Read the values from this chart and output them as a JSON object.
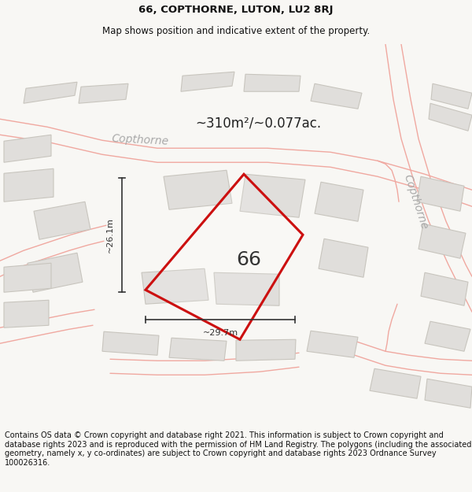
{
  "title": "66, COPTHORNE, LUTON, LU2 8RJ",
  "subtitle": "Map shows position and indicative extent of the property.",
  "area_text": "~310m²/~0.077ac.",
  "width_text": "~29.7m",
  "height_text": "~26.1m",
  "label": "66",
  "bg_color": "#f5f4f1",
  "map_bg": "#f5f4f1",
  "road_line_color": "#f0a8a0",
  "building_fill": "#e0dedb",
  "building_edge": "#c8c5be",
  "plot_color": "#cc1010",
  "dim_color": "#333333",
  "text_color": "#222222",
  "road_label_color": "#aaaaaa",
  "footer_text": "Contains OS data © Crown copyright and database right 2021. This information is subject to Crown copyright and database rights 2023 and is reproduced with the permission of HM Land Registry. The polygons (including the associated geometry, namely x, y co-ordinates) are subject to Crown copyright and database rights 2023 Ordnance Survey 100026316.",
  "title_fontsize": 9.5,
  "subtitle_fontsize": 8.5,
  "label_fontsize": 18,
  "area_fontsize": 12,
  "dim_fontsize": 8,
  "road_label_fontsize": 10,
  "footer_fontsize": 7,
  "figsize": [
    6.0,
    6.25
  ],
  "dpi": 100
}
